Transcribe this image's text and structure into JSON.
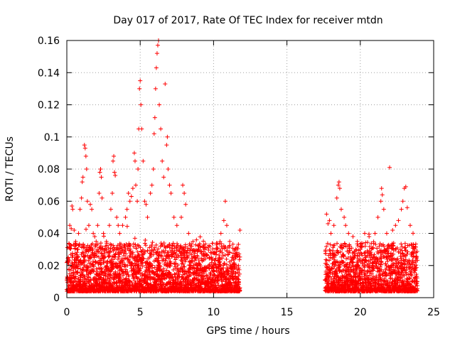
{
  "chart_data": {
    "type": "scatter",
    "title": "Day 017 of 2017, Rate Of TEC Index for receiver mtdn",
    "xlabel": "GPS time / hours",
    "ylabel": "ROTI / TECUs",
    "xlim": [
      0,
      25
    ],
    "ylim": [
      0,
      0.16
    ],
    "x_ticks": [
      0,
      5,
      10,
      15,
      20,
      25
    ],
    "x_tick_labels": [
      "0",
      "5",
      "10",
      "15",
      "20",
      "25"
    ],
    "y_ticks": [
      0,
      0.02,
      0.04,
      0.06,
      0.08,
      0.1,
      0.12,
      0.14,
      0.16
    ],
    "y_tick_labels": [
      "0",
      "0.02",
      "0.04",
      "0.06",
      "0.08",
      "0.1",
      "0.12",
      "0.14",
      "0.16"
    ],
    "grid": true,
    "marker": "+",
    "marker_color": "#ff0000",
    "data_segments": [
      {
        "x_start": 0.0,
        "x_end": 11.8,
        "typical_max": 0.03
      },
      {
        "x_start": 17.6,
        "x_end": 23.9,
        "typical_max": 0.03
      }
    ],
    "series": [
      {
        "name": "ROTI",
        "points": [
          [
            0.05,
            0.012
          ],
          [
            0.1,
            0.025
          ],
          [
            0.2,
            0.045
          ],
          [
            0.3,
            0.043
          ],
          [
            0.35,
            0.057
          ],
          [
            0.4,
            0.055
          ],
          [
            0.5,
            0.042
          ],
          [
            0.6,
            0.035
          ],
          [
            0.7,
            0.03
          ],
          [
            0.8,
            0.04
          ],
          [
            0.9,
            0.055
          ],
          [
            1.0,
            0.062
          ],
          [
            1.05,
            0.072
          ],
          [
            1.1,
            0.075
          ],
          [
            1.2,
            0.095
          ],
          [
            1.25,
            0.093
          ],
          [
            1.3,
            0.088
          ],
          [
            1.35,
            0.08
          ],
          [
            1.4,
            0.06
          ],
          [
            1.5,
            0.045
          ],
          [
            1.6,
            0.058
          ],
          [
            1.7,
            0.055
          ],
          [
            1.8,
            0.04
          ],
          [
            1.9,
            0.038
          ],
          [
            2.0,
            0.035
          ],
          [
            2.1,
            0.045
          ],
          [
            2.2,
            0.065
          ],
          [
            2.25,
            0.078
          ],
          [
            2.3,
            0.08
          ],
          [
            2.35,
            0.075
          ],
          [
            2.4,
            0.062
          ],
          [
            2.5,
            0.04
          ],
          [
            2.7,
            0.035
          ],
          [
            2.9,
            0.045
          ],
          [
            3.0,
            0.055
          ],
          [
            3.1,
            0.065
          ],
          [
            3.15,
            0.085
          ],
          [
            3.2,
            0.088
          ],
          [
            3.25,
            0.078
          ],
          [
            3.3,
            0.076
          ],
          [
            3.4,
            0.05
          ],
          [
            3.5,
            0.045
          ],
          [
            3.6,
            0.04
          ],
          [
            3.8,
            0.045
          ],
          [
            4.0,
            0.05
          ],
          [
            4.1,
            0.055
          ],
          [
            4.2,
            0.065
          ],
          [
            4.3,
            0.06
          ],
          [
            4.4,
            0.063
          ],
          [
            4.5,
            0.068
          ],
          [
            4.6,
            0.09
          ],
          [
            4.65,
            0.085
          ],
          [
            4.7,
            0.07
          ],
          [
            4.8,
            0.06
          ],
          [
            4.85,
            0.08
          ],
          [
            4.9,
            0.105
          ],
          [
            4.95,
            0.13
          ],
          [
            5.0,
            0.135
          ],
          [
            5.05,
            0.12
          ],
          [
            5.1,
            0.105
          ],
          [
            5.2,
            0.085
          ],
          [
            5.3,
            0.06
          ],
          [
            5.4,
            0.058
          ],
          [
            5.5,
            0.05
          ],
          [
            5.7,
            0.065
          ],
          [
            5.8,
            0.07
          ],
          [
            5.9,
            0.08
          ],
          [
            5.95,
            0.102
          ],
          [
            6.0,
            0.112
          ],
          [
            6.05,
            0.13
          ],
          [
            6.1,
            0.143
          ],
          [
            6.15,
            0.152
          ],
          [
            6.2,
            0.157
          ],
          [
            6.25,
            0.16
          ],
          [
            6.3,
            0.12
          ],
          [
            6.4,
            0.105
          ],
          [
            6.5,
            0.085
          ],
          [
            6.6,
            0.075
          ],
          [
            6.7,
            0.133
          ],
          [
            6.8,
            0.095
          ],
          [
            6.85,
            0.1
          ],
          [
            6.9,
            0.08
          ],
          [
            7.0,
            0.07
          ],
          [
            7.1,
            0.065
          ],
          [
            7.3,
            0.05
          ],
          [
            7.5,
            0.045
          ],
          [
            7.8,
            0.05
          ],
          [
            7.9,
            0.07
          ],
          [
            8.0,
            0.065
          ],
          [
            8.1,
            0.058
          ],
          [
            8.3,
            0.04
          ],
          [
            8.6,
            0.035
          ],
          [
            9.0,
            0.032
          ],
          [
            9.4,
            0.03
          ],
          [
            9.8,
            0.028
          ],
          [
            10.2,
            0.03
          ],
          [
            10.5,
            0.04
          ],
          [
            10.7,
            0.048
          ],
          [
            10.8,
            0.06
          ],
          [
            10.9,
            0.045
          ],
          [
            11.1,
            0.035
          ],
          [
            11.5,
            0.03
          ],
          [
            11.8,
            0.042
          ],
          [
            17.7,
            0.052
          ],
          [
            17.8,
            0.046
          ],
          [
            17.9,
            0.048
          ],
          [
            18.0,
            0.04
          ],
          [
            18.2,
            0.045
          ],
          [
            18.4,
            0.062
          ],
          [
            18.5,
            0.07
          ],
          [
            18.55,
            0.072
          ],
          [
            18.6,
            0.068
          ],
          [
            18.7,
            0.055
          ],
          [
            18.9,
            0.05
          ],
          [
            19.0,
            0.045
          ],
          [
            19.2,
            0.04
          ],
          [
            19.5,
            0.038
          ],
          [
            19.8,
            0.035
          ],
          [
            20.0,
            0.032
          ],
          [
            20.3,
            0.04
          ],
          [
            20.6,
            0.038
          ],
          [
            21.0,
            0.04
          ],
          [
            21.2,
            0.05
          ],
          [
            21.4,
            0.06
          ],
          [
            21.45,
            0.068
          ],
          [
            21.5,
            0.064
          ],
          [
            21.6,
            0.055
          ],
          [
            21.8,
            0.04
          ],
          [
            22.0,
            0.081
          ],
          [
            22.2,
            0.042
          ],
          [
            22.4,
            0.045
          ],
          [
            22.6,
            0.048
          ],
          [
            22.8,
            0.055
          ],
          [
            22.9,
            0.06
          ],
          [
            23.0,
            0.068
          ],
          [
            23.1,
            0.069
          ],
          [
            23.2,
            0.056
          ],
          [
            23.4,
            0.045
          ],
          [
            23.6,
            0.032
          ],
          [
            23.8,
            0.028
          ]
        ]
      }
    ]
  }
}
